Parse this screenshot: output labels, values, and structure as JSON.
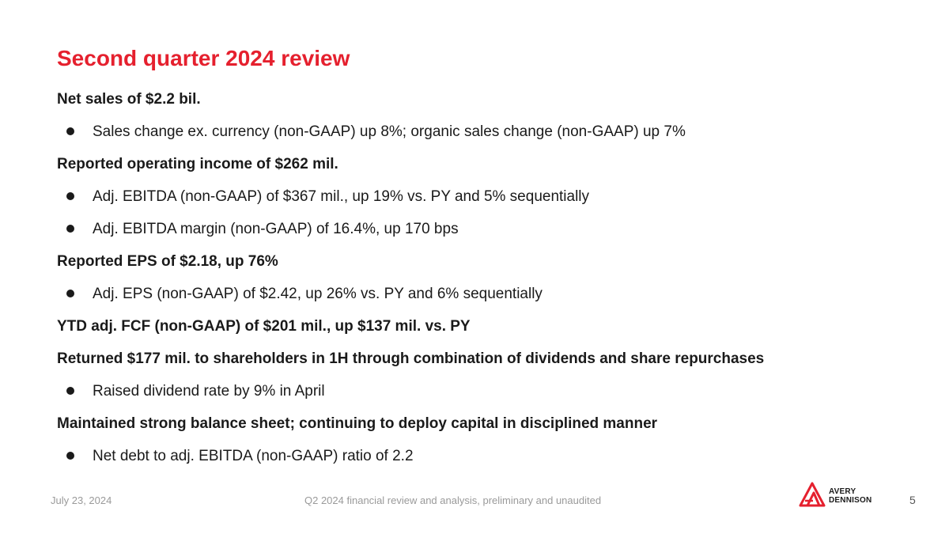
{
  "slide": {
    "title": "Second quarter 2024 review",
    "sections": [
      {
        "heading": "Net sales of $2.2 bil.",
        "bullets": [
          "Sales change ex. currency (non-GAAP) up 8%; organic sales change (non-GAAP) up 7%"
        ]
      },
      {
        "heading": "Reported operating income of $262 mil.",
        "bullets": [
          "Adj. EBITDA (non-GAAP) of $367 mil., up 19% vs. PY and 5% sequentially",
          "Adj. EBITDA margin (non-GAAP) of 16.4%, up 170 bps"
        ]
      },
      {
        "heading": "Reported EPS of $2.18, up 76%",
        "bullets": [
          "Adj. EPS (non-GAAP) of $2.42, up 26% vs. PY and 6% sequentially"
        ]
      },
      {
        "heading": "YTD adj. FCF (non-GAAP) of $201 mil., up $137 mil. vs. PY",
        "bullets": []
      },
      {
        "heading": "Returned $177 mil. to shareholders in 1H through combination of dividends and share repurchases",
        "bullets": [
          "Raised dividend rate by 9% in April"
        ]
      },
      {
        "heading": "Maintained strong balance sheet; continuing to deploy capital in disciplined manner",
        "bullets": [
          "Net debt to adj. EBITDA (non-GAAP) ratio of 2.2"
        ]
      }
    ]
  },
  "footer": {
    "date": "July 23, 2024",
    "center_text": "Q2 2024 financial review and analysis, preliminary and unaudited",
    "page_number": "5"
  },
  "logo": {
    "line1": "AVERY",
    "line2": "DENNISON",
    "icon": "avery-dennison-logo-icon",
    "color": "#e5202e"
  },
  "colors": {
    "title": "#e5202e",
    "text": "#1a1a1a",
    "footer": "#9a9a9a"
  }
}
